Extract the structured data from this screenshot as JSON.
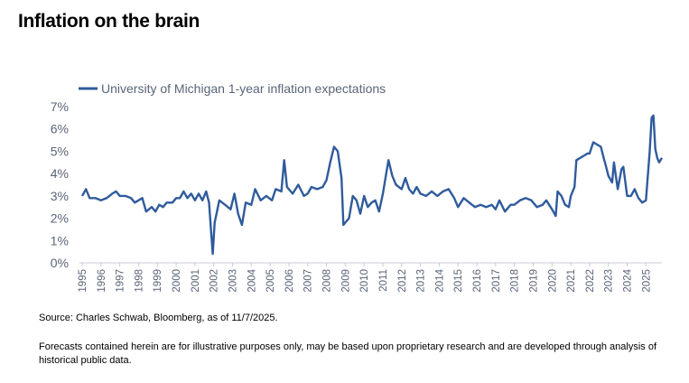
{
  "title": "Inflation on the brain",
  "source": "Source: Charles Schwab, Bloomberg, as of 11/7/2025.",
  "disclaimer": "Forecasts contained herein are for illustrative purposes only, may be based upon proprietary research and are developed through analysis of historical public data.",
  "colors": {
    "line": "#2f5b9c",
    "axis": "#c8ccd4",
    "text": "#5a6478"
  },
  "chart_data": {
    "type": "line",
    "ylabel": "",
    "xlabel": "",
    "ylim": [
      0,
      7
    ],
    "xlim": [
      1995,
      2025.85
    ],
    "y_ticks": [
      "0%",
      "1%",
      "2%",
      "3%",
      "4%",
      "5%",
      "6%",
      "7%"
    ],
    "x_ticks": [
      "1995",
      "1996",
      "1997",
      "1998",
      "1999",
      "2000",
      "2001",
      "2002",
      "2003",
      "2004",
      "2005",
      "2006",
      "2007",
      "2008",
      "2009",
      "2010",
      "2011",
      "2012",
      "2013",
      "2014",
      "2015",
      "2016",
      "2017",
      "2018",
      "2019",
      "2020",
      "2021",
      "2022",
      "2023",
      "2024",
      "2025"
    ],
    "legend_position": "top-left",
    "grid": false,
    "series": [
      {
        "name": "University of Michigan 1-year inflation expectations",
        "points": [
          [
            1995.0,
            3.0
          ],
          [
            1995.2,
            3.3
          ],
          [
            1995.4,
            2.9
          ],
          [
            1995.7,
            2.9
          ],
          [
            1996.0,
            2.8
          ],
          [
            1996.3,
            2.9
          ],
          [
            1996.6,
            3.1
          ],
          [
            1996.8,
            3.2
          ],
          [
            1997.0,
            3.0
          ],
          [
            1997.3,
            3.0
          ],
          [
            1997.6,
            2.9
          ],
          [
            1997.8,
            2.7
          ],
          [
            1998.0,
            2.8
          ],
          [
            1998.2,
            2.9
          ],
          [
            1998.4,
            2.3
          ],
          [
            1998.7,
            2.5
          ],
          [
            1998.9,
            2.3
          ],
          [
            1999.1,
            2.6
          ],
          [
            1999.3,
            2.5
          ],
          [
            1999.5,
            2.7
          ],
          [
            1999.8,
            2.7
          ],
          [
            2000.0,
            2.9
          ],
          [
            2000.2,
            2.9
          ],
          [
            2000.4,
            3.2
          ],
          [
            2000.6,
            2.9
          ],
          [
            2000.8,
            3.1
          ],
          [
            2001.0,
            2.8
          ],
          [
            2001.2,
            3.1
          ],
          [
            2001.4,
            2.8
          ],
          [
            2001.6,
            3.2
          ],
          [
            2001.75,
            2.7
          ],
          [
            2001.85,
            1.5
          ],
          [
            2001.95,
            0.4
          ],
          [
            2002.05,
            1.8
          ],
          [
            2002.3,
            2.8
          ],
          [
            2002.6,
            2.6
          ],
          [
            2002.9,
            2.4
          ],
          [
            2003.1,
            3.1
          ],
          [
            2003.3,
            2.2
          ],
          [
            2003.5,
            1.7
          ],
          [
            2003.7,
            2.7
          ],
          [
            2004.0,
            2.6
          ],
          [
            2004.2,
            3.3
          ],
          [
            2004.5,
            2.8
          ],
          [
            2004.8,
            3.0
          ],
          [
            2005.1,
            2.8
          ],
          [
            2005.3,
            3.3
          ],
          [
            2005.6,
            3.2
          ],
          [
            2005.75,
            4.6
          ],
          [
            2005.9,
            3.4
          ],
          [
            2006.2,
            3.1
          ],
          [
            2006.5,
            3.5
          ],
          [
            2006.8,
            3.0
          ],
          [
            2007.0,
            3.1
          ],
          [
            2007.2,
            3.4
          ],
          [
            2007.5,
            3.3
          ],
          [
            2007.8,
            3.4
          ],
          [
            2008.0,
            3.7
          ],
          [
            2008.2,
            4.5
          ],
          [
            2008.4,
            5.2
          ],
          [
            2008.6,
            5.0
          ],
          [
            2008.8,
            3.8
          ],
          [
            2008.9,
            1.7
          ],
          [
            2009.0,
            1.8
          ],
          [
            2009.2,
            2.0
          ],
          [
            2009.4,
            3.0
          ],
          [
            2009.6,
            2.8
          ],
          [
            2009.8,
            2.2
          ],
          [
            2010.0,
            3.0
          ],
          [
            2010.2,
            2.5
          ],
          [
            2010.4,
            2.7
          ],
          [
            2010.6,
            2.8
          ],
          [
            2010.8,
            2.3
          ],
          [
            2011.0,
            3.1
          ],
          [
            2011.2,
            4.1
          ],
          [
            2011.3,
            4.6
          ],
          [
            2011.5,
            3.9
          ],
          [
            2011.7,
            3.5
          ],
          [
            2012.0,
            3.3
          ],
          [
            2012.2,
            3.8
          ],
          [
            2012.4,
            3.3
          ],
          [
            2012.6,
            3.1
          ],
          [
            2012.8,
            3.4
          ],
          [
            2013.0,
            3.1
          ],
          [
            2013.3,
            3.0
          ],
          [
            2013.6,
            3.2
          ],
          [
            2013.9,
            3.0
          ],
          [
            2014.2,
            3.2
          ],
          [
            2014.5,
            3.3
          ],
          [
            2014.8,
            2.9
          ],
          [
            2015.0,
            2.5
          ],
          [
            2015.3,
            2.9
          ],
          [
            2015.6,
            2.7
          ],
          [
            2015.9,
            2.5
          ],
          [
            2016.2,
            2.6
          ],
          [
            2016.5,
            2.5
          ],
          [
            2016.8,
            2.6
          ],
          [
            2017.0,
            2.4
          ],
          [
            2017.2,
            2.8
          ],
          [
            2017.5,
            2.3
          ],
          [
            2017.8,
            2.6
          ],
          [
            2018.0,
            2.6
          ],
          [
            2018.3,
            2.8
          ],
          [
            2018.6,
            2.9
          ],
          [
            2018.9,
            2.8
          ],
          [
            2019.2,
            2.5
          ],
          [
            2019.5,
            2.6
          ],
          [
            2019.7,
            2.8
          ],
          [
            2020.0,
            2.4
          ],
          [
            2020.2,
            2.1
          ],
          [
            2020.3,
            3.2
          ],
          [
            2020.5,
            3.0
          ],
          [
            2020.7,
            2.6
          ],
          [
            2020.9,
            2.5
          ],
          [
            2021.0,
            3.0
          ],
          [
            2021.2,
            3.4
          ],
          [
            2021.3,
            4.6
          ],
          [
            2021.5,
            4.7
          ],
          [
            2021.7,
            4.8
          ],
          [
            2021.9,
            4.9
          ],
          [
            2022.0,
            4.9
          ],
          [
            2022.2,
            5.4
          ],
          [
            2022.4,
            5.3
          ],
          [
            2022.6,
            5.2
          ],
          [
            2022.75,
            4.7
          ],
          [
            2022.85,
            4.4
          ],
          [
            2023.0,
            3.9
          ],
          [
            2023.2,
            3.6
          ],
          [
            2023.3,
            4.5
          ],
          [
            2023.5,
            3.3
          ],
          [
            2023.7,
            4.2
          ],
          [
            2023.8,
            4.3
          ],
          [
            2024.0,
            3.0
          ],
          [
            2024.2,
            3.0
          ],
          [
            2024.4,
            3.3
          ],
          [
            2024.6,
            2.9
          ],
          [
            2024.8,
            2.7
          ],
          [
            2025.0,
            2.8
          ],
          [
            2025.2,
            5.0
          ],
          [
            2025.3,
            6.5
          ],
          [
            2025.4,
            6.6
          ],
          [
            2025.5,
            5.1
          ],
          [
            2025.6,
            4.7
          ],
          [
            2025.7,
            4.5
          ],
          [
            2025.85,
            4.7
          ]
        ]
      }
    ]
  }
}
